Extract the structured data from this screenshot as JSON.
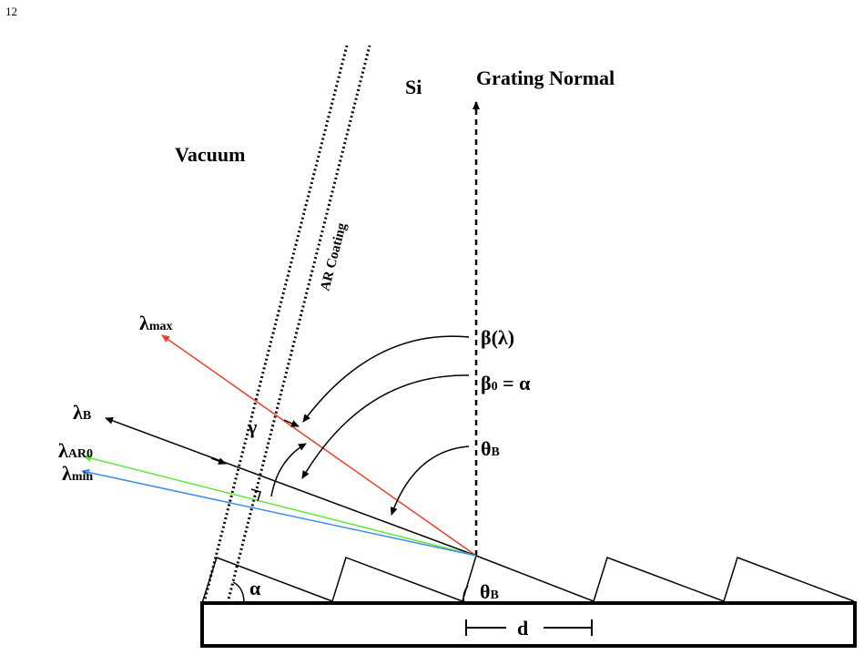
{
  "page_number": "12",
  "labels": {
    "silicon": "Si",
    "grating_normal": "Grating Normal",
    "vacuum": "Vacuum",
    "ar_coating": "AR Coating",
    "lambda_max": {
      "symbol": "λ",
      "subscript": "max"
    },
    "lambda_b": {
      "symbol": "λ",
      "subscript": "B"
    },
    "lambda_ar0": {
      "symbol": "λ",
      "subscript": "AR0"
    },
    "lambda_min": {
      "symbol": "λ",
      "subscript": "min"
    },
    "beta_lambda": "β(λ)",
    "beta0": {
      "symbol": "β",
      "subscript": "0",
      "rest": " = α"
    },
    "theta_b_top": {
      "symbol": "θ",
      "subscript": "B"
    },
    "gamma": "γ",
    "alpha": "α",
    "theta_b_bottom": {
      "symbol": "θ",
      "subscript": "B"
    },
    "period": "d"
  }
}
